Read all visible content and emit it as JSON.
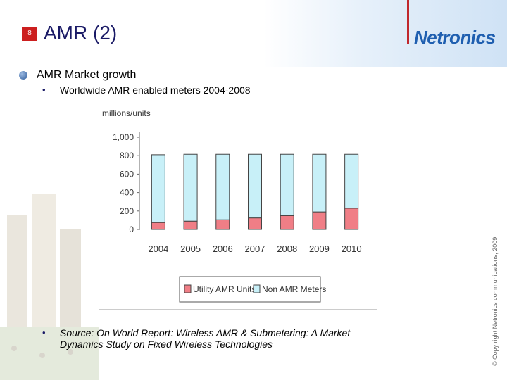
{
  "slide": {
    "number": "8",
    "title": "AMR (2)",
    "logo_text": "Netronics",
    "bullet_main": "AMR Market growth",
    "bullet_sub": "Worldwide AMR enabled meters 2004-2008",
    "source_text": "Source: On World Report: Wireless AMR & Submetering: A Market Dynamics Study on Fixed Wireless Technologies",
    "copyright": "© Copy right Netronics communications, 2009"
  },
  "chart_data": {
    "type": "bar",
    "stacked": true,
    "categories": [
      "2004",
      "2005",
      "2006",
      "2007",
      "2008",
      "2009",
      "2010"
    ],
    "ylabel": "millions/units",
    "ylim": [
      0,
      1000
    ],
    "yticks": [
      "0",
      "200",
      "400",
      "600",
      "800",
      "1,000"
    ],
    "series": [
      {
        "name": "Utility AMR Units",
        "color": "#f07e86",
        "values": [
          75,
          90,
          105,
          125,
          150,
          190,
          230
        ]
      },
      {
        "name": "Non AMR Meters",
        "color": "#c8f0f8",
        "values": [
          735,
          725,
          710,
          690,
          665,
          625,
          585
        ]
      }
    ],
    "legend_position": "bottom"
  }
}
